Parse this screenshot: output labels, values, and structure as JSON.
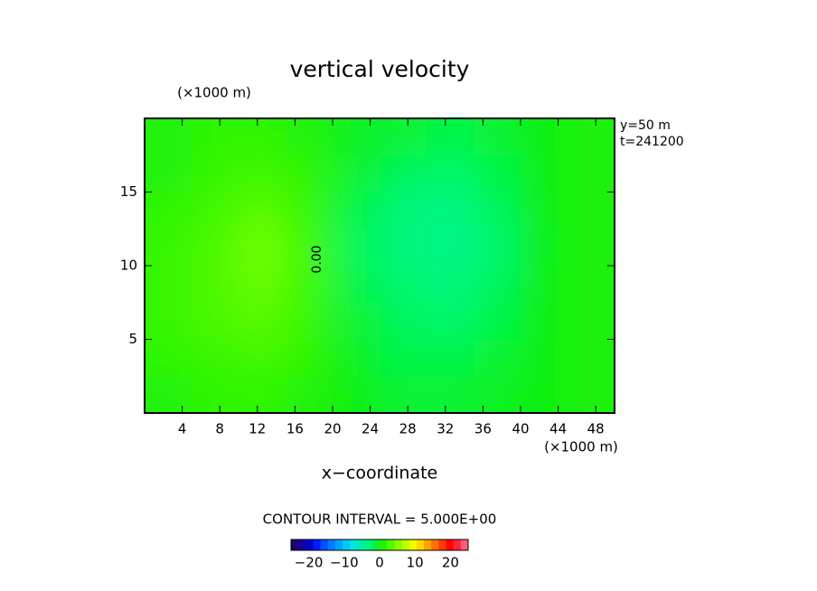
{
  "chart_data": {
    "type": "heatmap",
    "title": "vertical velocity",
    "x_label": "x−coordinate",
    "x_unit": "(×1000 m)",
    "y_unit": "(×1000 m)",
    "info": [
      "y=50 m",
      "t=241200"
    ],
    "contour_interval": "CONTOUR INTERVAL = 5.000E+00",
    "contour_label": "0.00",
    "xlim": [
      0,
      50
    ],
    "ylim": [
      0,
      20
    ],
    "xticks": [
      4,
      8,
      12,
      16,
      20,
      24,
      28,
      32,
      36,
      40,
      44,
      48
    ],
    "yticks": [
      5,
      10,
      15
    ],
    "x": [
      2.5,
      7.5,
      12.5,
      17.5,
      22.5,
      27.5,
      32.5,
      37.5,
      42.5,
      47.5
    ],
    "y": [
      1.25,
      3.75,
      6.25,
      8.75,
      11.25,
      13.75,
      16.25,
      18.75
    ],
    "z": [
      [
        1,
        1.5,
        1.5,
        1,
        0,
        -1,
        -1,
        -0.5,
        0,
        0.5
      ],
      [
        1.5,
        2,
        2.5,
        1.5,
        -0.5,
        -1.5,
        -1.5,
        -1,
        0,
        0.5
      ],
      [
        2,
        3,
        3.5,
        2,
        -1,
        -2,
        -2.5,
        -1.5,
        0,
        0.5
      ],
      [
        2,
        3,
        4,
        2.5,
        -1.5,
        -2.5,
        -3,
        -2,
        0,
        0.5
      ],
      [
        2,
        3,
        4.5,
        2.5,
        -2,
        -3,
        -4,
        -2.5,
        0,
        0.5
      ],
      [
        1.5,
        2.5,
        3.5,
        2,
        -1.5,
        -3,
        -3.5,
        -2,
        0,
        0.5
      ],
      [
        1,
        2,
        2.5,
        1.5,
        -1,
        -2,
        -2.5,
        -1.5,
        0,
        0.5
      ],
      [
        1,
        1.5,
        1.5,
        1,
        -0.5,
        -1,
        -1.5,
        -1,
        0,
        0.5
      ]
    ],
    "clim": [
      -25,
      25
    ],
    "colorbar_ticks": [
      {
        "value": -20,
        "label": "−20"
      },
      {
        "value": -10,
        "label": "−10"
      },
      0,
      10,
      20
    ],
    "colormap": [
      "#2a0050",
      "#1a0090",
      "#0000c8",
      "#0020ff",
      "#0060ff",
      "#0090ff",
      "#00c0ff",
      "#00e8e0",
      "#00f0a0",
      "#00f870",
      "#10f010",
      "#40f800",
      "#80ff00",
      "#c0ff00",
      "#ffff00",
      "#ffc000",
      "#ff8000",
      "#ff4000",
      "#ff0000",
      "#ff3050",
      "#ff8090"
    ]
  }
}
